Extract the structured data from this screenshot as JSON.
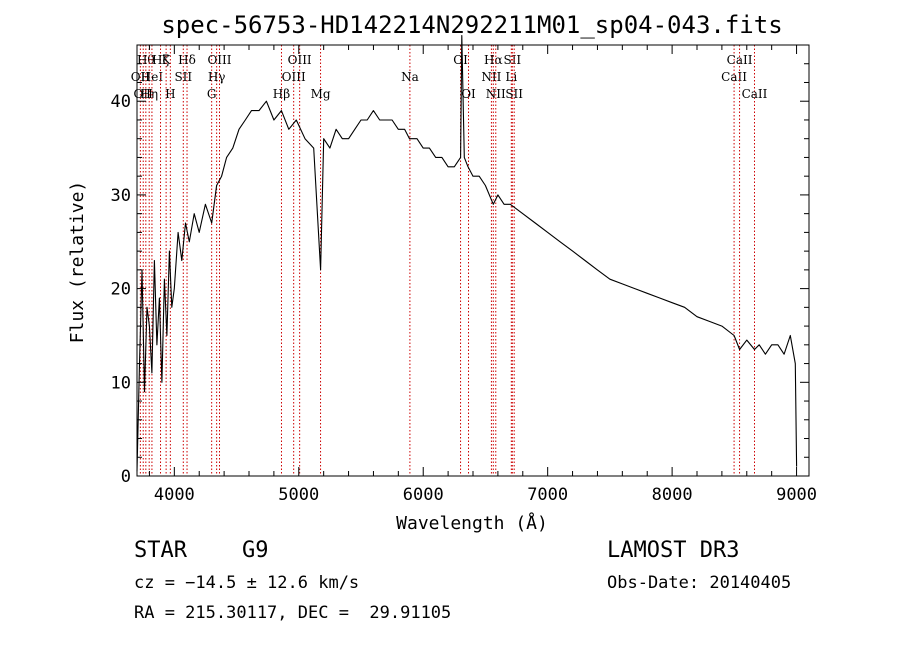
{
  "chart_data": {
    "type": "line",
    "title": "spec-56753-HD142214N292211M01_sp04-043.fits",
    "xlabel": "Wavelength (Å)",
    "ylabel": "Flux (relative)",
    "xlim": [
      3700,
      9100
    ],
    "ylim": [
      0,
      46
    ],
    "xticks": [
      4000,
      5000,
      6000,
      7000,
      8000,
      9000
    ],
    "xtick_labels": [
      "4000",
      "5000",
      "6000",
      "7000",
      "8000",
      "9000"
    ],
    "yticks": [
      0,
      10,
      20,
      30,
      40
    ],
    "ytick_labels": [
      "0",
      "10",
      "20",
      "30",
      "40"
    ],
    "series": [
      {
        "name": "spectrum",
        "x": [
          3700,
          3720,
          3740,
          3760,
          3780,
          3800,
          3820,
          3840,
          3860,
          3880,
          3900,
          3920,
          3940,
          3960,
          3980,
          4000,
          4030,
          4060,
          4090,
          4120,
          4160,
          4200,
          4250,
          4300,
          4340,
          4380,
          4420,
          4470,
          4520,
          4570,
          4620,
          4680,
          4740,
          4800,
          4860,
          4920,
          4980,
          5050,
          5120,
          5175,
          5200,
          5250,
          5300,
          5350,
          5400,
          5450,
          5500,
          5550,
          5600,
          5650,
          5700,
          5750,
          5800,
          5850,
          5890,
          5950,
          6000,
          6050,
          6100,
          6150,
          6200,
          6250,
          6300,
          6310,
          6330,
          6360,
          6400,
          6450,
          6500,
          6563,
          6600,
          6650,
          6700,
          6800,
          6900,
          7000,
          7100,
          7200,
          7300,
          7400,
          7500,
          7600,
          7700,
          7800,
          7900,
          8000,
          8100,
          8200,
          8300,
          8400,
          8498,
          8542,
          8600,
          8662,
          8700,
          8750,
          8800,
          8850,
          8900,
          8950,
          8990,
          9000
        ],
        "y": [
          0.5,
          12,
          22,
          9,
          18,
          16,
          11,
          23,
          14,
          19,
          10,
          21,
          15,
          24,
          18,
          20,
          26,
          23,
          27,
          25,
          28,
          26,
          29,
          27,
          31,
          32,
          34,
          35,
          37,
          38,
          39,
          39,
          40,
          38,
          39,
          37,
          38,
          36,
          35,
          22,
          36,
          35,
          37,
          36,
          36,
          37,
          38,
          38,
          39,
          38,
          38,
          38,
          37,
          37,
          36,
          36,
          35,
          35,
          34,
          34,
          33,
          33,
          34,
          47,
          34,
          33,
          32,
          32,
          31,
          29,
          30,
          29,
          29,
          28,
          27,
          26,
          25,
          24,
          23,
          22,
          21,
          20.5,
          20,
          19.5,
          19,
          18.5,
          18,
          17,
          16.5,
          16,
          15,
          13.5,
          14.5,
          13.5,
          14,
          13,
          14,
          14,
          13,
          15,
          12,
          1
        ]
      }
    ],
    "spectral_lines": [
      {
        "wavelength": 3727,
        "label": "OII",
        "row": 2
      },
      {
        "wavelength": 3750,
        "label": "OII",
        "row": 3
      },
      {
        "wavelength": 3771,
        "label": "Hθ",
        "row": 1
      },
      {
        "wavelength": 3798,
        "label": "Hη",
        "row": 3
      },
      {
        "wavelength": 3820,
        "label": "HeI",
        "row": 2
      },
      {
        "wavelength": 3889,
        "label": "Hζ",
        "row": 1
      },
      {
        "wavelength": 3934,
        "label": "K",
        "row": 1
      },
      {
        "wavelength": 3968,
        "label": "H",
        "row": 3
      },
      {
        "wavelength": 4072,
        "label": "SII",
        "row": 2
      },
      {
        "wavelength": 4102,
        "label": "Hδ",
        "row": 1
      },
      {
        "wavelength": 4300,
        "label": "G",
        "row": 3
      },
      {
        "wavelength": 4340,
        "label": "Hγ",
        "row": 2
      },
      {
        "wavelength": 4363,
        "label": "OIII",
        "row": 1
      },
      {
        "wavelength": 4861,
        "label": "Hβ",
        "row": 3
      },
      {
        "wavelength": 4959,
        "label": "OIII",
        "row": 2
      },
      {
        "wavelength": 5007,
        "label": "OIII",
        "row": 1
      },
      {
        "wavelength": 5175,
        "label": "Mg",
        "row": 3
      },
      {
        "wavelength": 5893,
        "label": "Na",
        "row": 2
      },
      {
        "wavelength": 6300,
        "label": "OI",
        "row": 1
      },
      {
        "wavelength": 6364,
        "label": "OI",
        "row": 3
      },
      {
        "wavelength": 6548,
        "label": "NII",
        "row": 2
      },
      {
        "wavelength": 6563,
        "label": "Hα",
        "row": 1
      },
      {
        "wavelength": 6583,
        "label": "NII",
        "row": 3
      },
      {
        "wavelength": 6708,
        "label": "Li",
        "row": 2
      },
      {
        "wavelength": 6716,
        "label": "SII",
        "row": 1
      },
      {
        "wavelength": 6731,
        "label": "SII",
        "row": 3
      },
      {
        "wavelength": 8498,
        "label": "CaII",
        "row": 2
      },
      {
        "wavelength": 8542,
        "label": "CaII",
        "row": 1
      },
      {
        "wavelength": 8662,
        "label": "CaII",
        "row": 3
      }
    ],
    "colors": {
      "spectrum": "#000000",
      "lines": "#cc0000",
      "axes": "#000000"
    }
  },
  "info": {
    "object_class": "STAR",
    "subclass": "G9",
    "survey": "LAMOST DR3",
    "cz": "cz = −14.5 ± 12.6 km/s",
    "obs_date": "Obs-Date: 20140405",
    "coords": "RA = 215.30117, DEC =  29.91105"
  }
}
